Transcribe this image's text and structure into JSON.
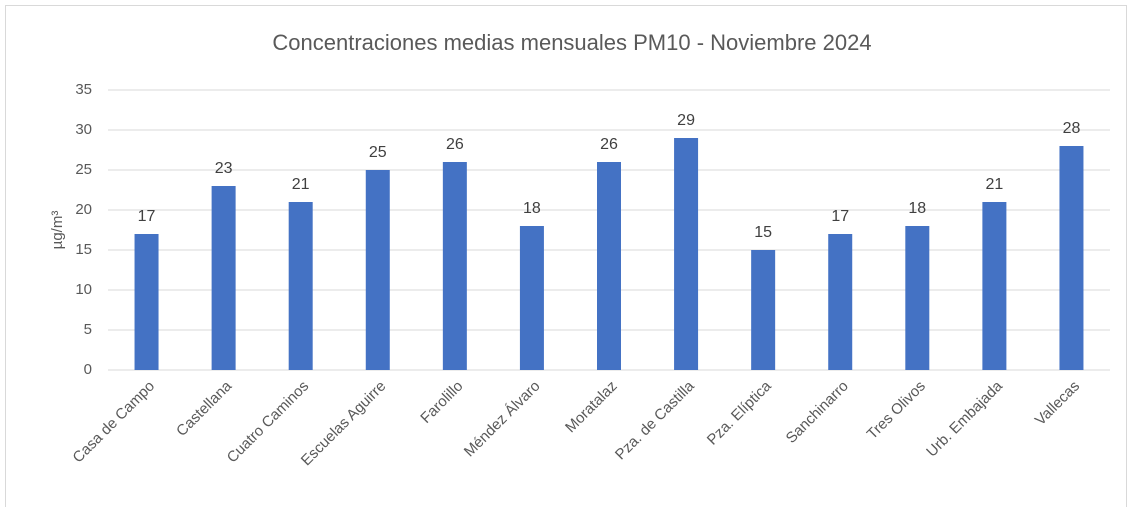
{
  "chart_data": {
    "type": "bar",
    "title": "Concentraciones medias mensuales PM10 - Noviembre 2024",
    "y_label": "µg/m³",
    "categories": [
      "Casa de Campo",
      "Castellana",
      "Cuatro Caminos",
      "Escuelas Aguirre",
      "Farolillo",
      "Méndez Álvaro",
      "Moratalaz",
      "Pza. de Castilla",
      "Pza. Elíptica",
      "Sanchinarro",
      "Tres Olivos",
      "Urb. Embajada",
      "Vallecas"
    ],
    "values": [
      17,
      23,
      21,
      25,
      26,
      18,
      26,
      29,
      15,
      17,
      18,
      21,
      28
    ],
    "color": "#4472c4",
    "ylim": [
      0,
      35
    ],
    "yticks": [
      0,
      5,
      10,
      15,
      20,
      25,
      30,
      35
    ],
    "grid": true
  }
}
